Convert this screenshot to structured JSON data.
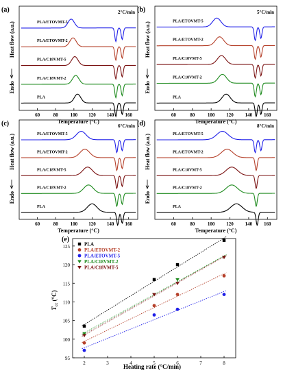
{
  "figure": {
    "panels": [
      {
        "id": "a",
        "tag": "(a)",
        "rate": "2°C/min",
        "xlabel": "Temperature (°C)",
        "ylabel": "Heat flow (a.u.)",
        "endo": "Endo",
        "xticks": [
          "60",
          "80",
          "100",
          "120",
          "140",
          "160"
        ],
        "labels": [
          "PLA/ETOVMT-5",
          "PLA/ETOVMT-2",
          "PLA/C18VMT-5",
          "PLA/C18VMT-2",
          "PLA"
        ]
      },
      {
        "id": "b",
        "tag": "(b)",
        "rate": "5°C/min",
        "xlabel": "Temperature (°C)",
        "ylabel": "Heat flow (a.u.)",
        "endo": "Endo",
        "xticks": [
          "60",
          "80",
          "100",
          "120",
          "140",
          "160"
        ],
        "labels": [
          "PLA/ETOVMT-5",
          "PLA/ETOVMT-2",
          "PLA/C18VMT-5",
          "PLA/C18VMT-2",
          "PLA"
        ]
      },
      {
        "id": "c",
        "tag": "(c)",
        "rate": "6°C/min",
        "xlabel": "Temperature (°C)",
        "ylabel": "Heat flow (a.u.)",
        "endo": "Endo",
        "xticks": [
          "60",
          "80",
          "100",
          "120",
          "140",
          "160"
        ],
        "labels": [
          "PLA/ETOVMT-5",
          "PLA/ETOVMT-2",
          "PLA/C18VMT-5",
          "PLA/C18VMT-2",
          "PLA"
        ]
      },
      {
        "id": "d",
        "tag": "(d)",
        "rate": "8°C/min",
        "xlabel": "Temperature (°C)",
        "ylabel": "Heat flow (a.u.)",
        "endo": "Endo",
        "xticks": [
          "60",
          "80",
          "100",
          "120",
          "140",
          "160"
        ],
        "labels": [
          "PLA/ETOVMT-5",
          "PLA/ETOVMT-2",
          "PLA/C18VMT-5",
          "PLA/C18VMT-2",
          "PLA"
        ]
      }
    ],
    "panel_e": {
      "tag": "(e)",
      "xlabel": "Heating rate (°C/min)",
      "ylabel": "T",
      "ylabel_sub": "cc",
      "ylabel_unit": " (°C)"
    }
  },
  "chart_data": [
    {
      "type": "line",
      "panel": "(a)",
      "title": "2°C/min",
      "xlabel": "Temperature (°C)",
      "ylabel": "Heat flow (a.u.)",
      "xlim": [
        40,
        170
      ],
      "series": [
        {
          "name": "PLA/ETOVMT-5",
          "color": "#1f1fe8",
          "cold_crystallization_peak": 97,
          "melting_peaks": [
            146,
            153
          ]
        },
        {
          "name": "PLA/ETOVMT-2",
          "color": "#b5402a",
          "cold_crystallization_peak": 99,
          "melting_peaks": [
            146,
            153
          ]
        },
        {
          "name": "PLA/C18VMT-5",
          "color": "#7a1111",
          "cold_crystallization_peak": 101,
          "melting_peaks": [
            146,
            153
          ]
        },
        {
          "name": "PLA/C18VMT-2",
          "color": "#1d8a1d",
          "cold_crystallization_peak": 102,
          "melting_peaks": [
            146,
            153
          ]
        },
        {
          "name": "PLA",
          "color": "#000000",
          "cold_crystallization_peak": 104,
          "melting_peaks": [
            146,
            153
          ]
        }
      ]
    },
    {
      "type": "line",
      "panel": "(b)",
      "title": "5°C/min",
      "xlabel": "Temperature (°C)",
      "ylabel": "Heat flow (a.u.)",
      "xlim": [
        40,
        170
      ],
      "series": [
        {
          "name": "PLA/ETOVMT-5",
          "color": "#1f1fe8",
          "cold_crystallization_peak": 106,
          "melting_peaks": [
            147,
            153
          ]
        },
        {
          "name": "PLA/ETOVMT-2",
          "color": "#b5402a",
          "cold_crystallization_peak": 109,
          "melting_peaks": [
            147,
            153
          ]
        },
        {
          "name": "PLA/C18VMT-5",
          "color": "#7a1111",
          "cold_crystallization_peak": 111,
          "melting_peaks": [
            147,
            153
          ]
        },
        {
          "name": "PLA/C18VMT-2",
          "color": "#1d8a1d",
          "cold_crystallization_peak": 112,
          "melting_peaks": [
            147,
            153
          ]
        },
        {
          "name": "PLA",
          "color": "#000000",
          "cold_crystallization_peak": 116,
          "melting_peaks": [
            148,
            153
          ]
        }
      ]
    },
    {
      "type": "line",
      "panel": "(c)",
      "title": "6°C/min",
      "xlabel": "Temperature (°C)",
      "ylabel": "Heat flow (a.u.)",
      "xlim": [
        40,
        170
      ],
      "series": [
        {
          "name": "PLA/ETOVMT-5",
          "color": "#1f1fe8",
          "cold_crystallization_peak": 108,
          "melting_peaks": [
            147,
            153
          ]
        },
        {
          "name": "PLA/ETOVMT-2",
          "color": "#b5402a",
          "cold_crystallization_peak": 112,
          "melting_peaks": [
            147,
            153
          ]
        },
        {
          "name": "PLA/C18VMT-5",
          "color": "#7a1111",
          "cold_crystallization_peak": 115,
          "melting_peaks": [
            147,
            153
          ]
        },
        {
          "name": "PLA/C18VMT-2",
          "color": "#1d8a1d",
          "cold_crystallization_peak": 116,
          "melting_peaks": [
            147,
            153
          ]
        },
        {
          "name": "PLA",
          "color": "#000000",
          "cold_crystallization_peak": 120,
          "melting_peaks": [
            148,
            153
          ]
        }
      ]
    },
    {
      "type": "line",
      "panel": "(d)",
      "title": "8°C/min",
      "xlabel": "Temperature (°C)",
      "ylabel": "Heat flow (a.u.)",
      "xlim": [
        40,
        170
      ],
      "series": [
        {
          "name": "PLA/ETOVMT-5",
          "color": "#1f1fe8",
          "cold_crystallization_peak": 112,
          "melting_peaks": [
            147,
            153
          ]
        },
        {
          "name": "PLA/ETOVMT-2",
          "color": "#b5402a",
          "cold_crystallization_peak": 117,
          "melting_peaks": [
            148
          ]
        },
        {
          "name": "PLA/C18VMT-5",
          "color": "#7a1111",
          "cold_crystallization_peak": 122,
          "melting_peaks": [
            148
          ]
        },
        {
          "name": "PLA/C18VMT-2",
          "color": "#1d8a1d",
          "cold_crystallization_peak": 122,
          "melting_peaks": [
            148
          ]
        },
        {
          "name": "PLA",
          "color": "#000000",
          "cold_crystallization_peak": 127,
          "melting_peaks": [
            149
          ]
        }
      ]
    },
    {
      "type": "scatter",
      "panel": "(e)",
      "xlabel": "Heating rate (°C/min)",
      "ylabel": "Tcc (°C)",
      "xlim": [
        1.5,
        8.5
      ],
      "ylim": [
        95,
        127
      ],
      "xticks": [
        2,
        3,
        4,
        5,
        6,
        7,
        8
      ],
      "yticks": [
        95,
        100,
        105,
        110,
        115,
        120,
        125
      ],
      "x": [
        2,
        5,
        6,
        8
      ],
      "legend_position": "top-left",
      "series": [
        {
          "name": "PLA",
          "color": "#000000",
          "marker": "square",
          "values": [
            103.5,
            116,
            120,
            126.5
          ]
        },
        {
          "name": "PLA/ETOVMT-2",
          "color": "#b5402a",
          "marker": "circle",
          "values": [
            99,
            109,
            112,
            117
          ]
        },
        {
          "name": "PLA/ETOVMT-5",
          "color": "#1f1fe8",
          "marker": "circle",
          "values": [
            97,
            106.5,
            108,
            112
          ]
        },
        {
          "name": "PLA/C18VMT-2",
          "color": "#1d8a1d",
          "marker": "triangle-down",
          "values": [
            101.5,
            112,
            116,
            122
          ]
        },
        {
          "name": "PLA/C18VMT-5",
          "color": "#7a1111",
          "marker": "triangle-down",
          "values": [
            101,
            112,
            115,
            122
          ]
        }
      ]
    }
  ]
}
